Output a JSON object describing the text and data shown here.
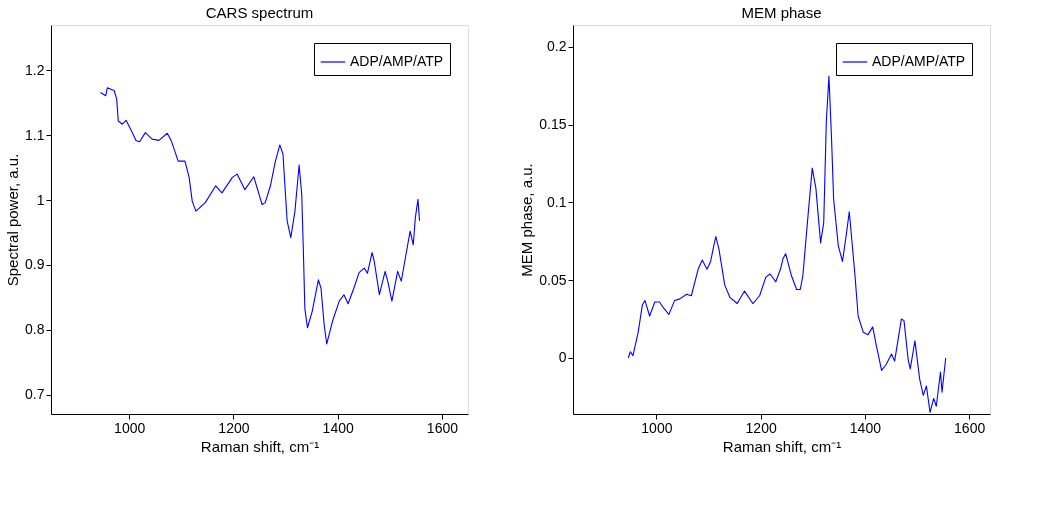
{
  "chart_data": [
    {
      "type": "line",
      "title": "CARS spectrum",
      "xlabel": "Raman shift, cm⁻¹",
      "ylabel": "Spectral power, a.u.",
      "xlim": [
        850,
        1650
      ],
      "xticks": [
        1000,
        1200,
        1400,
        1600
      ],
      "ylim": [
        0.67,
        1.27
      ],
      "yticks": [
        0.7,
        0.8,
        0.9,
        1,
        1.1,
        1.2
      ],
      "grid": false,
      "legend": "top right",
      "series": [
        {
          "name": "ADP/AMP/ATP",
          "color": "#0000ff",
          "x": [
            945,
            955,
            958,
            965,
            971,
            976,
            979,
            987,
            994,
            1003,
            1013,
            1020,
            1031,
            1044,
            1057,
            1073,
            1081,
            1094,
            1107,
            1115,
            1121,
            1128,
            1146,
            1166,
            1178,
            1198,
            1207,
            1222,
            1239,
            1255,
            1261,
            1271,
            1280,
            1289,
            1295,
            1303,
            1310,
            1318,
            1326,
            1331,
            1334,
            1337,
            1342,
            1351,
            1363,
            1368,
            1374,
            1379,
            1390,
            1403,
            1412,
            1420,
            1431,
            1441,
            1451,
            1457,
            1466,
            1470,
            1480,
            1491,
            1496,
            1504,
            1515,
            1522,
            1531,
            1539,
            1545,
            1549,
            1554,
            1557
          ],
          "values": [
            1.166,
            1.161,
            1.173,
            1.171,
            1.169,
            1.156,
            1.122,
            1.117,
            1.123,
            1.109,
            1.092,
            1.09,
            1.104,
            1.094,
            1.092,
            1.103,
            1.091,
            1.06,
            1.06,
            1.035,
            0.998,
            0.983,
            0.996,
            1.022,
            1.011,
            1.035,
            1.04,
            1.016,
            1.036,
            0.993,
            0.996,
            1.022,
            1.058,
            1.085,
            1.071,
            0.968,
            0.942,
            0.983,
            1.054,
            1.009,
            0.926,
            0.833,
            0.803,
            0.828,
            0.877,
            0.864,
            0.808,
            0.778,
            0.813,
            0.844,
            0.854,
            0.84,
            0.864,
            0.888,
            0.895,
            0.887,
            0.919,
            0.906,
            0.854,
            0.89,
            0.875,
            0.844,
            0.89,
            0.875,
            0.916,
            0.952,
            0.931,
            0.973,
            1.001,
            0.968
          ]
        }
      ]
    },
    {
      "type": "line",
      "title": "MEM phase",
      "xlabel": "Raman shift, cm⁻¹",
      "ylabel": "MEM phase, a.u.",
      "xlim": [
        840,
        1640
      ],
      "xticks": [
        1000,
        1200,
        1400,
        1600
      ],
      "ylim": [
        -0.036,
        0.214
      ],
      "yticks": [
        0,
        0.05,
        0.1,
        0.15,
        0.2
      ],
      "grid": false,
      "legend": "top right",
      "series": [
        {
          "name": "ADP/AMP/ATP",
          "color": "#0000ff",
          "x": [
            946,
            950,
            955,
            965,
            973,
            978,
            987,
            997,
            1006,
            1014,
            1024,
            1035,
            1045,
            1058,
            1067,
            1080,
            1088,
            1097,
            1104,
            1110,
            1114,
            1120,
            1131,
            1141,
            1155,
            1169,
            1185,
            1198,
            1210,
            1218,
            1229,
            1238,
            1243,
            1248,
            1259,
            1269,
            1276,
            1281,
            1291,
            1299,
            1306,
            1315,
            1321,
            1326,
            1331,
            1336,
            1340,
            1349,
            1357,
            1365,
            1370,
            1381,
            1387,
            1397,
            1406,
            1415,
            1422,
            1432,
            1441,
            1451,
            1457,
            1470,
            1475,
            1483,
            1487,
            1496,
            1505,
            1512,
            1518,
            1525,
            1532,
            1537,
            1545,
            1548,
            1555
          ],
          "values": [
            0,
            0.004,
            0.0015,
            0.0165,
            0.034,
            0.037,
            0.027,
            0.036,
            0.036,
            0.032,
            0.028,
            0.037,
            0.038,
            0.041,
            0.04,
            0.057,
            0.063,
            0.057,
            0.062,
            0.072,
            0.078,
            0.07,
            0.047,
            0.039,
            0.035,
            0.043,
            0.035,
            0.04,
            0.052,
            0.054,
            0.049,
            0.057,
            0.064,
            0.067,
            0.053,
            0.044,
            0.044,
            0.053,
            0.092,
            0.122,
            0.109,
            0.074,
            0.087,
            0.152,
            0.181,
            0.141,
            0.102,
            0.072,
            0.062,
            0.081,
            0.094,
            0.053,
            0.027,
            0.0165,
            0.015,
            0.02,
            0.008,
            -0.008,
            -0.004,
            0.0025,
            -0.002,
            0.025,
            0.024,
            -0.001,
            -0.007,
            0.011,
            -0.0135,
            -0.024,
            -0.018,
            -0.035,
            -0.026,
            -0.031,
            -0.009,
            -0.022,
            0
          ]
        }
      ]
    }
  ]
}
